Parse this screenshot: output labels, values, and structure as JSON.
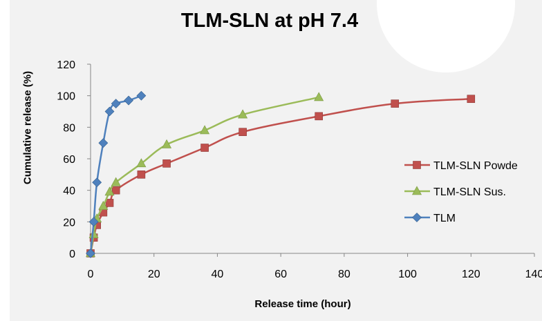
{
  "chart_data": {
    "type": "line",
    "title": "TLM-SLN at pH 7.4",
    "xlabel": "Release time (hour)",
    "ylabel": "Cumulative release (%)",
    "xlim": [
      0,
      140
    ],
    "ylim": [
      0,
      120
    ],
    "xticks": [
      0,
      20,
      40,
      60,
      80,
      100,
      120,
      140
    ],
    "yticks": [
      0,
      20,
      40,
      60,
      80,
      100,
      120
    ],
    "grid": false,
    "legend_position": "right",
    "series": [
      {
        "name": "TLM-SLN Powder",
        "legend_label": "TLM-SLN Powde",
        "color": "#c0504d",
        "marker": "square",
        "x": [
          0,
          1,
          2,
          4,
          6,
          8,
          16,
          24,
          36,
          48,
          72,
          96,
          120
        ],
        "y": [
          0,
          10,
          18,
          26,
          32,
          40,
          50,
          57,
          67,
          77,
          87,
          95,
          98
        ]
      },
      {
        "name": "TLM-SLN Sus.",
        "legend_label": "TLM-SLN Sus.",
        "color": "#9bbb59",
        "marker": "triangle",
        "x": [
          0,
          1,
          2,
          4,
          6,
          8,
          16,
          24,
          36,
          48,
          72
        ],
        "y": [
          0,
          12,
          22,
          30,
          39,
          45,
          57,
          69,
          78,
          88,
          99
        ]
      },
      {
        "name": "TLM",
        "legend_label": "TLM",
        "color": "#4f81bd",
        "marker": "diamond",
        "x": [
          0,
          1,
          2,
          4,
          6,
          8,
          12,
          16
        ],
        "y": [
          0,
          20,
          45,
          70,
          90,
          95,
          97,
          100
        ]
      }
    ]
  }
}
